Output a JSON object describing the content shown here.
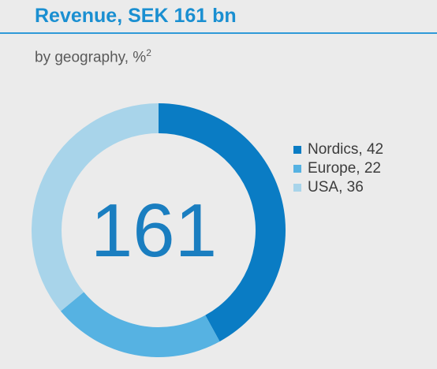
{
  "title": "Revenue, SEK 161 bn",
  "subtitle": "by geography, %",
  "subtitle_sup": "2",
  "chart_data": {
    "type": "pie",
    "subtype": "donut",
    "center_label": "161",
    "legend_position": "right",
    "categories": [
      "Nordics",
      "Europe",
      "USA"
    ],
    "values": [
      42,
      22,
      36
    ],
    "colors": [
      "#0a7cc4",
      "#56b2e2",
      "#a8d4ea"
    ],
    "legend_labels": [
      "Nordics, 42",
      "Europe, 22",
      "USA, 36"
    ],
    "start": "top",
    "direction": "clockwise"
  }
}
